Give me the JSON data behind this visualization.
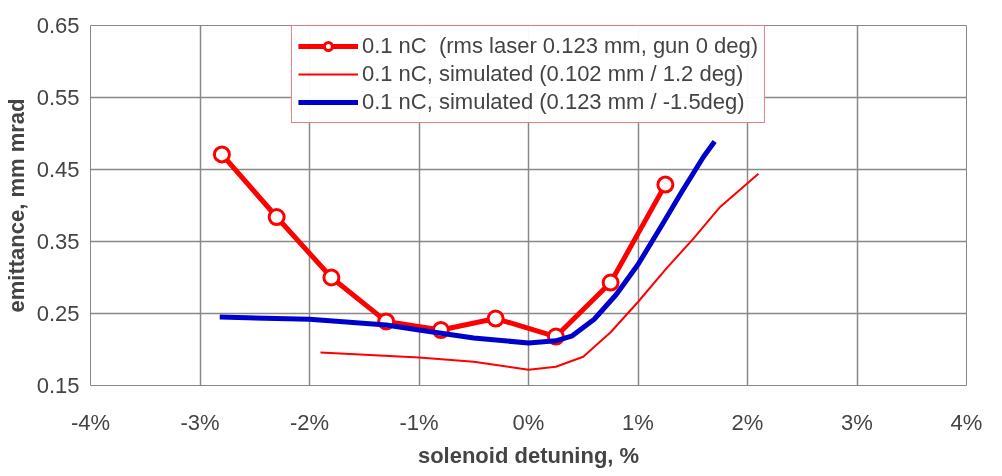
{
  "chart_data": {
    "type": "line",
    "xlabel": "solenoid detuning, %",
    "ylabel": "emittance, mm mrad",
    "series": [
      {
        "name": "0.1 nC  (rms laser 0.123 mm, gun 0 deg)",
        "color": "#ff0000",
        "marker": "circle",
        "x": [
          -2.8,
          -2.3,
          -1.8,
          -1.3,
          -0.8,
          -0.3,
          0.25,
          0.75,
          1.25
        ],
        "values": [
          0.471,
          0.384,
          0.3,
          0.239,
          0.227,
          0.243,
          0.218,
          0.293,
          0.429
        ]
      },
      {
        "name": "0.1 nC, simulated (0.102 mm / 1.2 deg)",
        "color": "#ff0000",
        "marker": "none",
        "x": [
          -1.9,
          -1.0,
          -0.5,
          0.0,
          0.25,
          0.5,
          0.75,
          1.0,
          1.25,
          1.5,
          1.75,
          2.1
        ],
        "values": [
          0.196,
          0.189,
          0.183,
          0.172,
          0.176,
          0.19,
          0.224,
          0.266,
          0.311,
          0.353,
          0.398,
          0.444
        ]
      },
      {
        "name": "0.1 nC, simulated (0.123 mm / -1.5deg)",
        "color": "#0000cc",
        "marker": "none",
        "x": [
          -2.82,
          -2.0,
          -1.3,
          -1.0,
          -0.5,
          0.0,
          0.25,
          0.4,
          0.6,
          0.8,
          1.0,
          1.2,
          1.4,
          1.6,
          1.7
        ],
        "values": [
          0.245,
          0.242,
          0.234,
          0.227,
          0.216,
          0.209,
          0.212,
          0.219,
          0.242,
          0.276,
          0.318,
          0.368,
          0.419,
          0.468,
          0.489
        ]
      }
    ],
    "xlim": [
      -4,
      4
    ],
    "xticks": [
      {
        "value": -4,
        "label": "-4%"
      },
      {
        "value": -3,
        "label": "-3%"
      },
      {
        "value": -2,
        "label": "-2%"
      },
      {
        "value": -1,
        "label": "-1%"
      },
      {
        "value": 0,
        "label": "0%"
      },
      {
        "value": 1,
        "label": "1%"
      },
      {
        "value": 2,
        "label": "2%"
      },
      {
        "value": 3,
        "label": "3%"
      },
      {
        "value": 4,
        "label": "4%"
      }
    ],
    "ylim": [
      0.15,
      0.65
    ],
    "yticks": [
      {
        "value": 0.15,
        "label": "0.15"
      },
      {
        "value": 0.25,
        "label": "0.25"
      },
      {
        "value": 0.35,
        "label": "0.35"
      },
      {
        "value": 0.45,
        "label": "0.45"
      },
      {
        "value": 0.55,
        "label": "0.55"
      },
      {
        "value": 0.65,
        "label": "0.65"
      }
    ],
    "grid": true,
    "legend": "top"
  }
}
